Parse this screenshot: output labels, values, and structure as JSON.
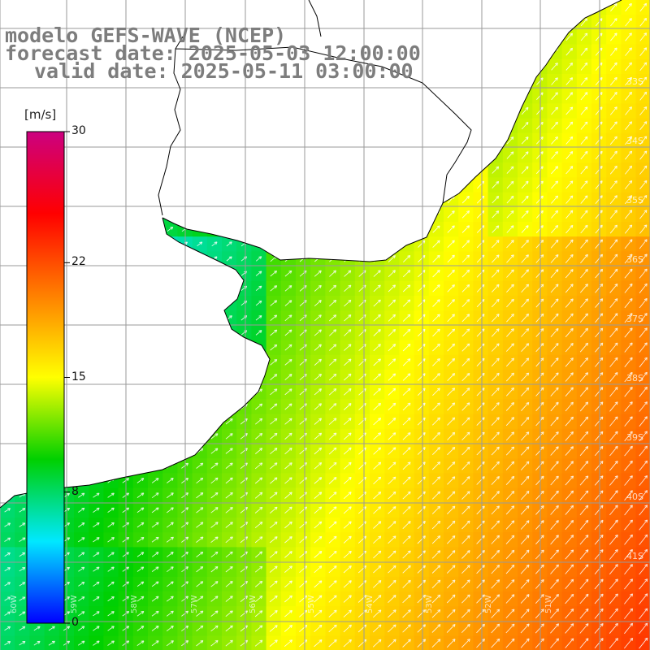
{
  "title": {
    "model": "modelo GEFS-WAVE (NCEP)",
    "forecast": "forecast date: 2025-05-03 12:00:00",
    "valid": "valid date: 2025-05-11 03:00:00"
  },
  "legend": {
    "unit": "[m/s]",
    "ticks": [
      "30",
      "22",
      "15",
      "8",
      "0"
    ],
    "tick_values": [
      30,
      22,
      15,
      8,
      0
    ],
    "range": [
      0,
      30
    ],
    "colormap": [
      "#0000ff",
      "#00e8ff",
      "#00d000",
      "#ffff00",
      "#ff8000",
      "#ff0000",
      "#cc0080"
    ]
  },
  "map": {
    "variable": "wind speed",
    "unit": "m/s",
    "lon_labels": [
      "60W",
      "59W",
      "58W",
      "57W",
      "56W",
      "55W",
      "54W",
      "53W",
      "52W",
      "51W"
    ],
    "lat_labels": [
      "33S",
      "34S",
      "35S",
      "36S",
      "37S",
      "38S",
      "39S",
      "40S",
      "41S"
    ],
    "land_color": "#ffffff",
    "grid_color": "#9a9a9a",
    "arrow_color": "#ffffff"
  }
}
